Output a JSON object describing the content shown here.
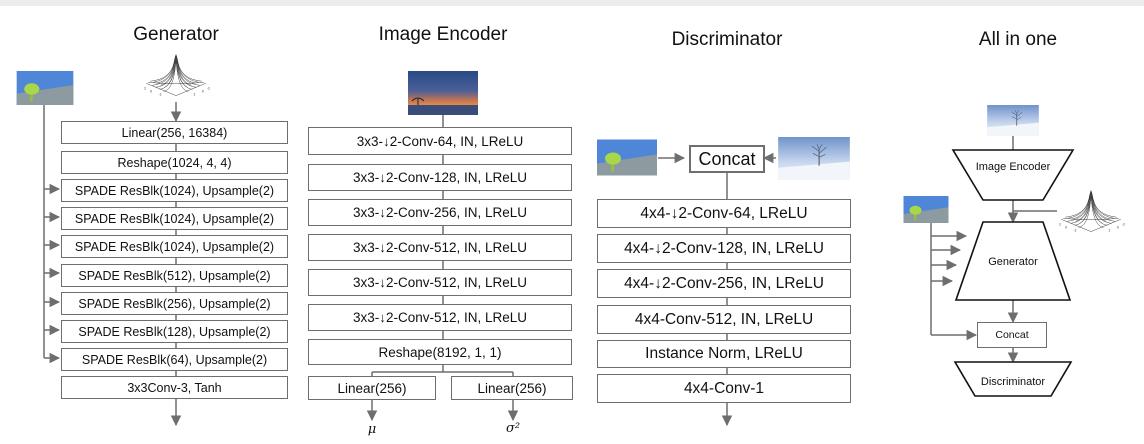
{
  "colors": {
    "line": "#6e6e6e",
    "box_border": "#6e6e6e",
    "sky": "#5b8bd6",
    "grass": "#7f8c8d",
    "tree": "#9acd32"
  },
  "titles": {
    "generator": "Generator",
    "encoder": "Image Encoder",
    "discriminator": "Discriminator",
    "all_in_one": "All in one"
  },
  "generator": {
    "layers": [
      "Linear(256, 16384)",
      "Reshape(1024, 4, 4)",
      "SPADE ResBlk(1024), Upsample(2)",
      "SPADE ResBlk(1024), Upsample(2)",
      "SPADE ResBlk(1024), Upsample(2)",
      "SPADE ResBlk(512), Upsample(2)",
      "SPADE ResBlk(256), Upsample(2)",
      "SPADE ResBlk(128), Upsample(2)",
      "SPADE ResBlk(64), Upsample(2)",
      "3x3Conv-3, Tanh"
    ]
  },
  "encoder": {
    "layers": [
      "3x3-↓2-Conv-64, IN, LReLU",
      "3x3-↓2-Conv-128, IN, LReLU",
      "3x3-↓2-Conv-256, IN, LReLU",
      "3x3-↓2-Conv-512, IN, LReLU",
      "3x3-↓2-Conv-512, IN, LReLU",
      "3x3-↓2-Conv-512, IN, LReLU",
      "Reshape(8192, 1, 1)"
    ],
    "heads": [
      "Linear(256)",
      "Linear(256)"
    ],
    "outputs": [
      "μ",
      "σ²"
    ]
  },
  "discriminator": {
    "concat": "Concat",
    "layers": [
      "4x4-↓2-Conv-64, LReLU",
      "4x4-↓2-Conv-128, IN, LReLU",
      "4x4-↓2-Conv-256, IN, LReLU",
      "4x4-Conv-512, IN, LReLU",
      "Instance Norm, LReLU",
      "4x4-Conv-1"
    ]
  },
  "all_in_one": {
    "encoder": "Image Encoder",
    "generator": "Generator",
    "concat": "Concat",
    "discriminator": "Discriminator"
  },
  "icons": [
    "segmentation-map-icon",
    "gaussian-surface-plot-icon",
    "sunset-photo-icon",
    "snowy-tree-photo-icon"
  ]
}
